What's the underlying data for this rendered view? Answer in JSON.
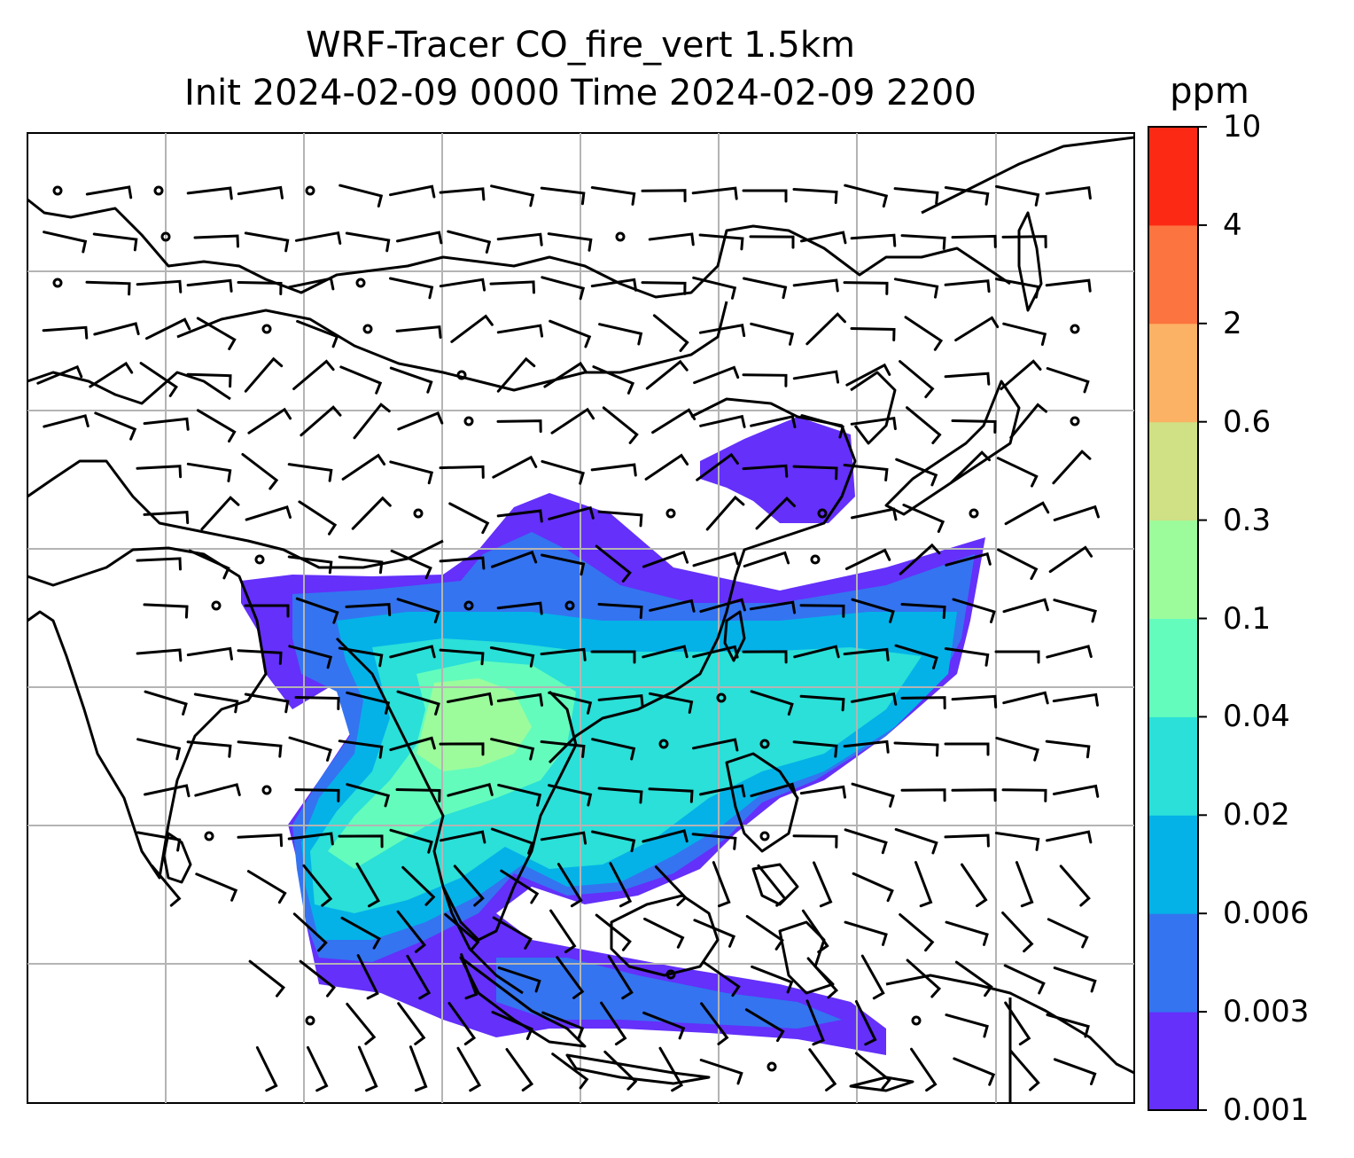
{
  "title": {
    "line1": "WRF-Tracer CO_fire_vert 1.5km",
    "line2": "Init 2024-02-09 0000 Time 2024-02-09 2200"
  },
  "colorbar": {
    "unit": "ppm",
    "levels": [
      "0.001",
      "0.003",
      "0.006",
      "0.02",
      "0.04",
      "0.1",
      "0.3",
      "0.6",
      "2",
      "4",
      "10"
    ],
    "colors": [
      "#6430fa",
      "#3474f0",
      "#04b2e8",
      "#2ae0d8",
      "#64fcbc",
      "#9cfc9c",
      "#d0e084",
      "#fcb264",
      "#fc7440",
      "#fc2a14"
    ]
  },
  "map": {
    "gridlines": true,
    "wind_barbs": true,
    "coastlines": true
  }
}
